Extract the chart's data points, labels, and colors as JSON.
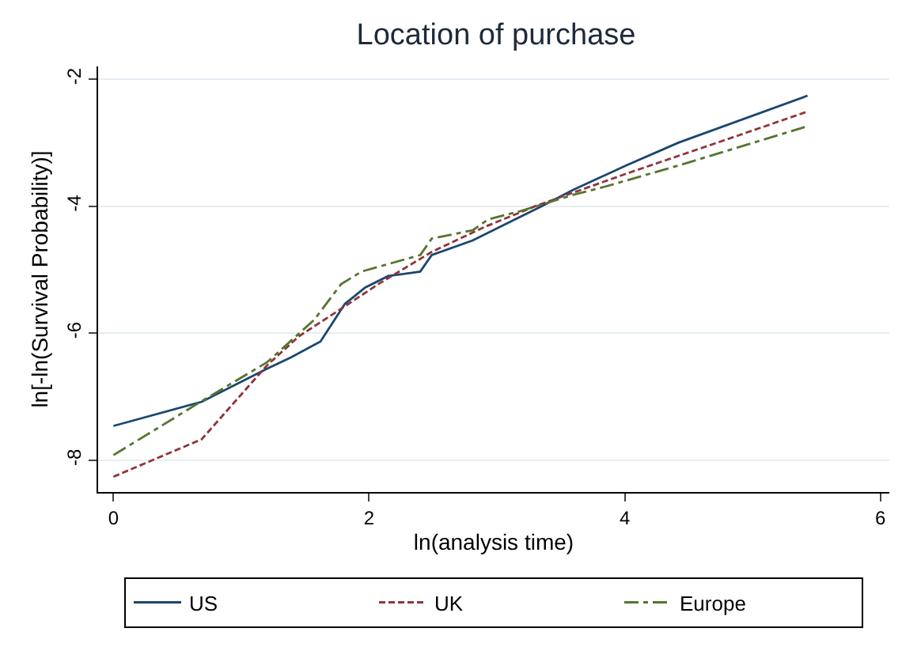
{
  "chart_data": {
    "type": "line",
    "title": "Location of purchase",
    "xlabel": "ln(analysis time)",
    "ylabel": "ln[-ln(Survival Probability)]",
    "xlim": [
      -0.12,
      6.07
    ],
    "ylim": [
      -8.5,
      -1.8
    ],
    "xticks": [
      0,
      2,
      4,
      6
    ],
    "yticks": [
      -8,
      -6,
      -4,
      -2
    ],
    "grid": "y",
    "legend": "bottom",
    "series": [
      {
        "name": "US",
        "color": "#1a476f",
        "line_style": "solid",
        "x": [
          0,
          0.69,
          1.2,
          1.39,
          1.62,
          1.81,
          1.97,
          2.15,
          2.4,
          2.49,
          2.81,
          3.14,
          3.35,
          3.6,
          4.01,
          4.42,
          5.43
        ],
        "values": [
          -7.46,
          -7.08,
          -6.56,
          -6.38,
          -6.13,
          -5.54,
          -5.28,
          -5.1,
          -5.03,
          -4.77,
          -4.54,
          -4.21,
          -4.0,
          -3.74,
          -3.36,
          -3.0,
          -2.26
        ]
      },
      {
        "name": "UK",
        "color": "#90353b",
        "line_style": "dashed",
        "x": [
          0,
          0.69,
          1.2,
          1.45,
          1.74,
          2.07,
          2.49,
          2.9,
          3.3,
          4.01,
          4.84,
          5.43
        ],
        "values": [
          -8.26,
          -7.67,
          -6.51,
          -6.05,
          -5.67,
          -5.23,
          -4.72,
          -4.33,
          -4.0,
          -3.49,
          -2.92,
          -2.51
        ]
      },
      {
        "name": "Europe",
        "color": "#55752f",
        "line_style": "dashdot",
        "x": [
          0,
          0.69,
          1.2,
          1.57,
          1.78,
          1.94,
          2.4,
          2.49,
          2.81,
          2.93,
          3.18,
          3.6,
          3.85,
          4.42,
          5.43
        ],
        "values": [
          -7.92,
          -7.07,
          -6.46,
          -5.79,
          -5.23,
          -5.03,
          -4.77,
          -4.51,
          -4.38,
          -4.21,
          -4.08,
          -3.82,
          -3.69,
          -3.36,
          -2.74
        ]
      }
    ]
  }
}
